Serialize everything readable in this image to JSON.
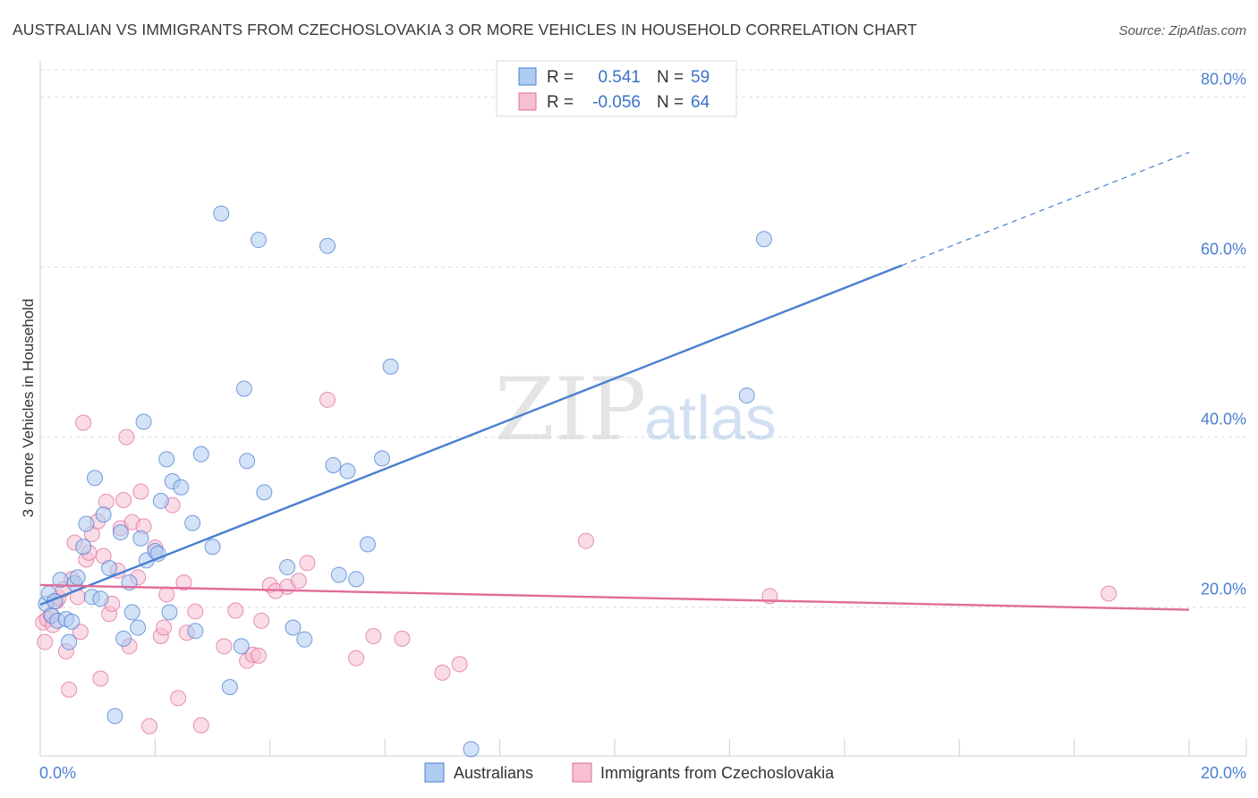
{
  "chart_data": {
    "type": "scatter",
    "title": "AUSTRALIAN VS IMMIGRANTS FROM CZECHOSLOVAKIA 3 OR MORE VEHICLES IN HOUSEHOLD CORRELATION CHART",
    "source": "Source: ZipAtlas.com",
    "xlabel": "",
    "ylabel": "3 or more Vehicles in Household",
    "xlim": [
      0,
      20
    ],
    "ylim": [
      2.5,
      83
    ],
    "x_tick_labels": [
      "0.0%",
      "20.0%"
    ],
    "y_ticks": [
      20,
      40,
      60,
      80
    ],
    "y_tick_labels": [
      "20.0%",
      "40.0%",
      "60.0%",
      "80.0%"
    ],
    "watermark": {
      "zip": "ZIP",
      "atlas": "atlas"
    },
    "legend_stats": [
      {
        "r_label": "R =",
        "r_value": "0.541",
        "n_label": "N =",
        "n_value": "59"
      },
      {
        "r_label": "R =",
        "r_value": "-0.056",
        "n_label": "N =",
        "n_value": "64"
      }
    ],
    "series": [
      {
        "name": "Australians",
        "color": "#4a7fd0",
        "fill": "#aecbf0",
        "trend": {
          "x0": 0,
          "y0": 20.3,
          "x1": 15,
          "y1": 60.2,
          "dash_to_x": 20,
          "dash_to_y": 73.5
        },
        "points": [
          [
            0.1,
            20.4
          ],
          [
            0.15,
            21.6
          ],
          [
            0.2,
            19.0
          ],
          [
            0.25,
            20.7
          ],
          [
            0.3,
            18.4
          ],
          [
            0.35,
            23.2
          ],
          [
            0.45,
            18.6
          ],
          [
            0.5,
            15.9
          ],
          [
            0.55,
            18.3
          ],
          [
            0.6,
            22.8
          ],
          [
            0.65,
            23.5
          ],
          [
            0.75,
            27.1
          ],
          [
            0.8,
            29.8
          ],
          [
            0.9,
            21.2
          ],
          [
            0.95,
            35.2
          ],
          [
            1.05,
            21.0
          ],
          [
            1.1,
            30.9
          ],
          [
            1.2,
            24.6
          ],
          [
            1.3,
            7.2
          ],
          [
            1.4,
            28.8
          ],
          [
            1.45,
            16.3
          ],
          [
            1.55,
            22.9
          ],
          [
            1.6,
            19.4
          ],
          [
            1.7,
            17.6
          ],
          [
            1.75,
            28.1
          ],
          [
            1.8,
            41.8
          ],
          [
            1.85,
            25.5
          ],
          [
            2.0,
            26.6
          ],
          [
            2.05,
            26.3
          ],
          [
            2.1,
            32.5
          ],
          [
            2.2,
            37.4
          ],
          [
            2.25,
            19.4
          ],
          [
            2.3,
            34.8
          ],
          [
            2.45,
            34.1
          ],
          [
            2.65,
            29.9
          ],
          [
            2.7,
            17.2
          ],
          [
            2.8,
            38.0
          ],
          [
            3.0,
            27.1
          ],
          [
            3.15,
            66.3
          ],
          [
            3.3,
            10.6
          ],
          [
            3.5,
            15.4
          ],
          [
            3.55,
            45.7
          ],
          [
            3.6,
            37.2
          ],
          [
            3.8,
            63.2
          ],
          [
            3.9,
            33.5
          ],
          [
            4.3,
            24.7
          ],
          [
            4.4,
            17.6
          ],
          [
            4.6,
            16.2
          ],
          [
            5.0,
            62.5
          ],
          [
            5.1,
            36.7
          ],
          [
            5.2,
            23.8
          ],
          [
            5.35,
            36.0
          ],
          [
            5.5,
            23.3
          ],
          [
            5.7,
            27.4
          ],
          [
            5.95,
            37.5
          ],
          [
            6.1,
            48.3
          ],
          [
            7.5,
            3.3
          ],
          [
            12.3,
            44.9
          ],
          [
            12.6,
            63.3
          ]
        ]
      },
      {
        "name": "Immigrants from Czechoslovakia",
        "color": "#e06c9a",
        "fill": "#f6bfd3",
        "trend": {
          "x0": 0,
          "y0": 22.6,
          "x1": 20,
          "y1": 19.7
        },
        "points": [
          [
            0.05,
            18.2
          ],
          [
            0.08,
            15.9
          ],
          [
            0.12,
            18.6
          ],
          [
            0.18,
            19.1
          ],
          [
            0.22,
            17.9
          ],
          [
            0.28,
            20.7
          ],
          [
            0.32,
            21.1
          ],
          [
            0.4,
            22.1
          ],
          [
            0.45,
            14.8
          ],
          [
            0.5,
            10.3
          ],
          [
            0.55,
            23.3
          ],
          [
            0.6,
            27.6
          ],
          [
            0.65,
            21.2
          ],
          [
            0.7,
            17.1
          ],
          [
            0.75,
            41.7
          ],
          [
            0.8,
            25.6
          ],
          [
            0.85,
            26.4
          ],
          [
            0.9,
            28.6
          ],
          [
            1.0,
            30.1
          ],
          [
            1.05,
            11.6
          ],
          [
            1.1,
            26.0
          ],
          [
            1.15,
            32.4
          ],
          [
            1.2,
            19.2
          ],
          [
            1.25,
            20.4
          ],
          [
            1.35,
            24.3
          ],
          [
            1.4,
            29.3
          ],
          [
            1.45,
            32.6
          ],
          [
            1.5,
            40.0
          ],
          [
            1.55,
            15.4
          ],
          [
            1.6,
            30.0
          ],
          [
            1.7,
            23.5
          ],
          [
            1.75,
            33.6
          ],
          [
            1.8,
            29.5
          ],
          [
            1.9,
            6.0
          ],
          [
            2.0,
            27.0
          ],
          [
            2.1,
            16.6
          ],
          [
            2.15,
            17.6
          ],
          [
            2.2,
            21.5
          ],
          [
            2.3,
            32.0
          ],
          [
            2.4,
            9.3
          ],
          [
            2.5,
            22.9
          ],
          [
            2.55,
            17.0
          ],
          [
            2.7,
            19.5
          ],
          [
            2.8,
            6.1
          ],
          [
            3.2,
            15.4
          ],
          [
            3.4,
            19.6
          ],
          [
            3.6,
            13.7
          ],
          [
            3.7,
            14.4
          ],
          [
            3.8,
            14.3
          ],
          [
            3.85,
            18.4
          ],
          [
            4.0,
            22.6
          ],
          [
            4.1,
            21.9
          ],
          [
            4.3,
            22.4
          ],
          [
            4.5,
            23.1
          ],
          [
            4.65,
            25.2
          ],
          [
            5.0,
            44.4
          ],
          [
            5.5,
            14.0
          ],
          [
            5.8,
            16.6
          ],
          [
            6.3,
            16.3
          ],
          [
            7.0,
            12.3
          ],
          [
            7.3,
            13.3
          ],
          [
            9.5,
            27.8
          ],
          [
            12.7,
            21.3
          ],
          [
            18.6,
            21.6
          ]
        ]
      }
    ]
  },
  "bottom_legend": [
    {
      "label": "Australians"
    },
    {
      "label": "Immigrants from Czechoslovakia"
    }
  ]
}
